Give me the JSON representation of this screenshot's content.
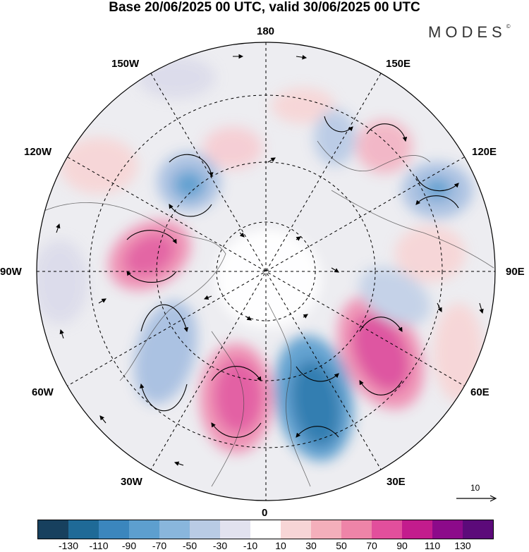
{
  "header": {
    "title": "Base 20/06/2025 00 UTC, valid 30/06/2025 00 UTC",
    "brand": "MODES"
  },
  "map": {
    "projection": "north polar stereographic",
    "longitude_labels": {
      "lon_180": "180",
      "lon_150e": "150E",
      "lon_120e": "120E",
      "lon_90e": "90E",
      "lon_60e": "60E",
      "lon_30e": "30E",
      "lon_0": "0",
      "lon_30w": "30W",
      "lon_60w": "60W",
      "lon_90w": "90W",
      "lon_120w": "120W",
      "lon_150w": "150W"
    },
    "reference_vector": {
      "label": "10"
    }
  },
  "colorbar": {
    "tick_labels": [
      "-130",
      "-110",
      "-90",
      "-70",
      "-50",
      "-30",
      "-10",
      "10",
      "30",
      "50",
      "70",
      "90",
      "110",
      "130"
    ],
    "colors": [
      "#17405e",
      "#1f6a97",
      "#3b86bd",
      "#5d9fcf",
      "#89b6dc",
      "#b9cbe5",
      "#e2e2ef",
      "#ffffff",
      "#f7d5d6",
      "#f4afbb",
      "#ee84a8",
      "#e24f9c",
      "#c31c8d",
      "#8c0a8a",
      "#5c0a7a"
    ]
  },
  "colors": {
    "ocean": "#e6e6ea",
    "land": "#dcdcdc",
    "arrows": "#000000"
  }
}
